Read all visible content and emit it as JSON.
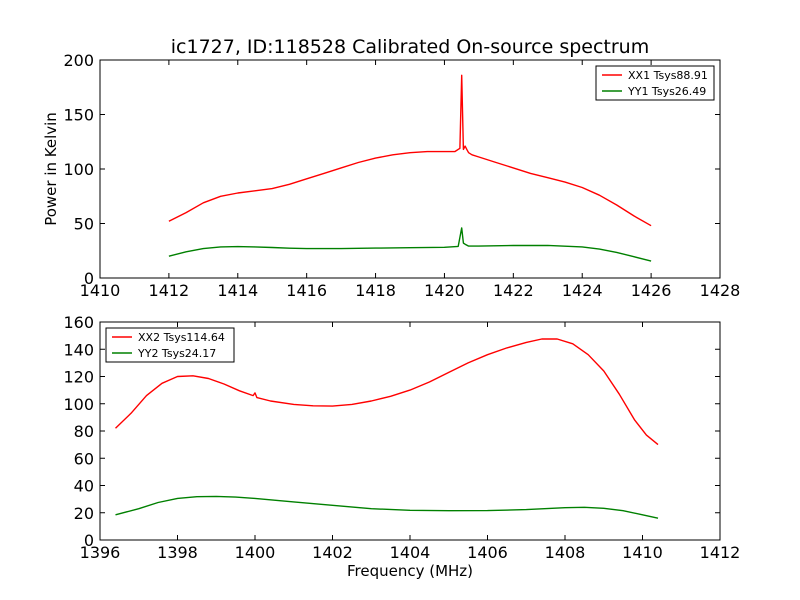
{
  "chart_data": [
    {
      "type": "line",
      "title": "ic1727, ID:118528 Calibrated On-source spectrum",
      "xlabel": "",
      "ylabel": "Power in Kelvin",
      "xlim": [
        1410,
        1428
      ],
      "ylim": [
        0,
        200
      ],
      "xticks": [
        1410,
        1412,
        1414,
        1416,
        1418,
        1420,
        1422,
        1424,
        1426,
        1428
      ],
      "yticks": [
        0,
        50,
        100,
        150,
        200
      ],
      "legend_position": "top-right",
      "series": [
        {
          "name": "XX1 Tsys88.91",
          "color": "#ff0000",
          "x": [
            1412,
            1412.5,
            1413,
            1413.5,
            1414,
            1414.5,
            1415,
            1415.5,
            1416,
            1416.5,
            1417,
            1417.5,
            1418,
            1418.5,
            1419,
            1419.5,
            1420,
            1420.3,
            1420.45,
            1420.5,
            1420.55,
            1420.6,
            1420.65,
            1420.7,
            1420.8,
            1421,
            1421.5,
            1422,
            1422.5,
            1423,
            1423.5,
            1424,
            1424.5,
            1425,
            1425.5,
            1426
          ],
          "y": [
            52,
            60,
            69,
            75,
            78,
            80,
            82,
            86,
            91,
            96,
            101,
            106,
            110,
            113,
            115,
            116,
            116,
            116,
            119,
            186,
            118,
            121,
            118,
            115,
            113,
            111,
            106,
            101,
            96,
            92,
            88,
            83,
            76,
            67,
            57,
            48
          ]
        },
        {
          "name": "YY1 Tsys26.49",
          "color": "#008000",
          "x": [
            1412,
            1412.5,
            1413,
            1413.5,
            1414,
            1414.5,
            1415,
            1415.5,
            1416,
            1417,
            1418,
            1419,
            1420,
            1420.4,
            1420.5,
            1420.55,
            1420.6,
            1420.7,
            1421,
            1422,
            1423,
            1424,
            1424.5,
            1425,
            1425.5,
            1426
          ],
          "y": [
            20,
            24,
            27,
            28.5,
            28.8,
            28.5,
            28,
            27.3,
            27,
            27,
            27.4,
            27.8,
            28.2,
            29,
            46,
            32,
            31,
            29.3,
            29.3,
            29.8,
            29.9,
            28.5,
            26.5,
            23.5,
            19.5,
            15.5
          ]
        }
      ]
    },
    {
      "type": "line",
      "title": "",
      "xlabel": "Frequency (MHz)",
      "ylabel": "",
      "xlim": [
        1396,
        1412
      ],
      "ylim": [
        0,
        160
      ],
      "xticks": [
        1396,
        1398,
        1400,
        1402,
        1404,
        1406,
        1408,
        1410,
        1412
      ],
      "yticks": [
        0,
        20,
        40,
        60,
        80,
        100,
        120,
        140,
        160
      ],
      "legend_position": "top-left",
      "series": [
        {
          "name": "XX2 Tsys114.64",
          "color": "#ff0000",
          "x": [
            1396.4,
            1396.8,
            1397.2,
            1397.6,
            1398,
            1398.4,
            1398.8,
            1399.2,
            1399.6,
            1399.95,
            1400,
            1400.05,
            1400.4,
            1401,
            1401.5,
            1402,
            1402.5,
            1403,
            1403.5,
            1404,
            1404.5,
            1405,
            1405.5,
            1406,
            1406.5,
            1407,
            1407.4,
            1407.8,
            1408.2,
            1408.6,
            1409,
            1409.4,
            1409.8,
            1410.1,
            1410.4
          ],
          "y": [
            82,
            93,
            106,
            115,
            120,
            120.5,
            118.5,
            114.5,
            109.5,
            106,
            108,
            104.5,
            102,
            99.5,
            98.5,
            98.3,
            99.5,
            102,
            105.5,
            110,
            116,
            123,
            130,
            136,
            141,
            145,
            147.5,
            147.5,
            144,
            136,
            124,
            107,
            88,
            77,
            70
          ]
        },
        {
          "name": "YY2 Tsys24.17",
          "color": "#008000",
          "x": [
            1396.4,
            1397,
            1397.5,
            1398,
            1398.5,
            1399,
            1399.5,
            1400,
            1401,
            1402,
            1403,
            1404,
            1405,
            1406,
            1407,
            1408,
            1408.5,
            1409,
            1409.5,
            1410,
            1410.4
          ],
          "y": [
            18.5,
            23,
            27.5,
            30.5,
            31.8,
            32,
            31.5,
            30.5,
            28,
            25.5,
            23,
            21.8,
            21.5,
            21.6,
            22.3,
            23.7,
            24,
            23.3,
            21.5,
            18.5,
            16
          ]
        }
      ]
    }
  ]
}
